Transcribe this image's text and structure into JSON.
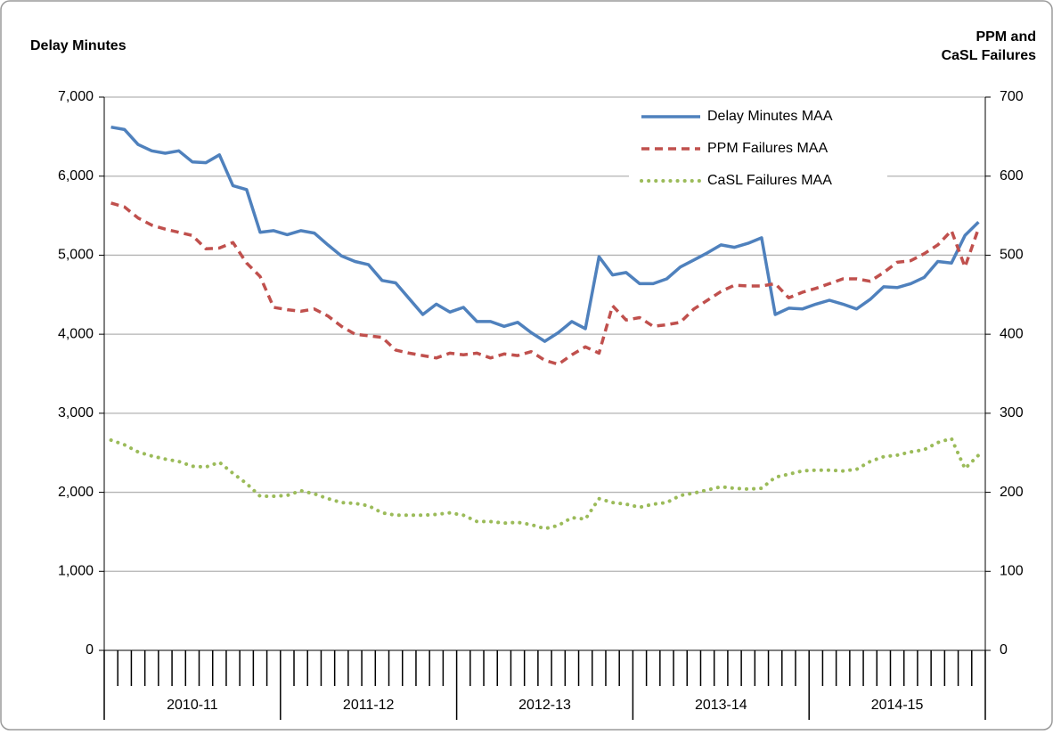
{
  "chart_data": {
    "type": "line",
    "ylabel": "Delay Minutes",
    "y2label": [
      "PPM and",
      "CaSL Failures"
    ],
    "categories": [
      null,
      null,
      null,
      null,
      null,
      null,
      null,
      null,
      null,
      null,
      null,
      null,
      null,
      null,
      null,
      null,
      null,
      null,
      null,
      null,
      null,
      null,
      null,
      null,
      null,
      null,
      null,
      null,
      null,
      null,
      null,
      null,
      null,
      null,
      null,
      null,
      null,
      null,
      null,
      null,
      null,
      null,
      null,
      null,
      null,
      null,
      null,
      null,
      null,
      null,
      null,
      null,
      null,
      null,
      null,
      null,
      null,
      null,
      null,
      null,
      null,
      null,
      null,
      null,
      null
    ],
    "category_groups": [
      "2010-11",
      "2011-12",
      "2012-13",
      "2013-14",
      "2014-15"
    ],
    "ylim": [
      0,
      7000
    ],
    "yticks": [
      {
        "value": 0,
        "label": "0"
      },
      {
        "value": 1000,
        "label": "1,000"
      },
      {
        "value": 2000,
        "label": "2,000"
      },
      {
        "value": 3000,
        "label": "3,000"
      },
      {
        "value": 4000,
        "label": "4,000"
      },
      {
        "value": 5000,
        "label": "5,000"
      },
      {
        "value": 6000,
        "label": "6,000"
      },
      {
        "value": 7000,
        "label": "7,000"
      }
    ],
    "y2lim": [
      0,
      700
    ],
    "y2ticks": [
      0,
      100,
      200,
      300,
      400,
      500,
      600,
      700
    ],
    "grid": true,
    "legend": "top-right",
    "series": [
      {
        "name": "Delay Minutes MAA",
        "color": "#4f81bd",
        "style": "solid",
        "values": [
          6620,
          6590,
          6400,
          6320,
          6290,
          6320,
          6180,
          6170,
          6270,
          5880,
          5830,
          5290,
          5310,
          5260,
          5310,
          5280,
          5130,
          4990,
          4920,
          4880,
          4680,
          4650,
          4450,
          4250,
          4380,
          4280,
          4340,
          4160,
          4160,
          4100,
          4150,
          4020,
          3910,
          4020,
          4160,
          4070,
          4980,
          4750,
          4780,
          4640,
          4640,
          4700,
          4850,
          4940,
          5030,
          5130,
          5100,
          5150,
          5220,
          4250,
          4330,
          4320,
          4380,
          4430,
          4380,
          4320,
          4440,
          4600,
          4590,
          4640,
          4720,
          4920,
          4900,
          5250,
          5420
        ]
      },
      {
        "name": "PPM Failures MAA",
        "color": "#c0504d",
        "style": "dashed",
        "axis": "y2",
        "values": [
          566,
          561,
          547,
          538,
          533,
          529,
          525,
          508,
          509,
          516,
          490,
          473,
          434,
          431,
          429,
          432,
          423,
          410,
          400,
          398,
          396,
          380,
          376,
          373,
          370,
          376,
          374,
          376,
          370,
          375,
          373,
          378,
          367,
          362,
          374,
          384,
          376,
          436,
          418,
          421,
          410,
          412,
          415,
          432,
          443,
          454,
          462,
          461,
          461,
          464,
          446,
          453,
          458,
          464,
          470,
          470,
          467,
          478,
          491,
          493,
          502,
          513,
          531,
          485,
          534
        ]
      },
      {
        "name": "CaSL Failures MAA",
        "color": "#9bbb59",
        "style": "dotted",
        "axis": "y2",
        "values": [
          266,
          260,
          251,
          246,
          242,
          239,
          233,
          232,
          238,
          224,
          211,
          195,
          195,
          196,
          202,
          198,
          192,
          187,
          186,
          183,
          174,
          171,
          171,
          171,
          172,
          174,
          171,
          163,
          163,
          161,
          162,
          159,
          154,
          158,
          168,
          166,
          192,
          187,
          185,
          181,
          185,
          187,
          196,
          199,
          203,
          207,
          205,
          204,
          205,
          219,
          223,
          227,
          228,
          228,
          227,
          229,
          239,
          245,
          247,
          251,
          254,
          263,
          268,
          230,
          247
        ]
      }
    ]
  }
}
